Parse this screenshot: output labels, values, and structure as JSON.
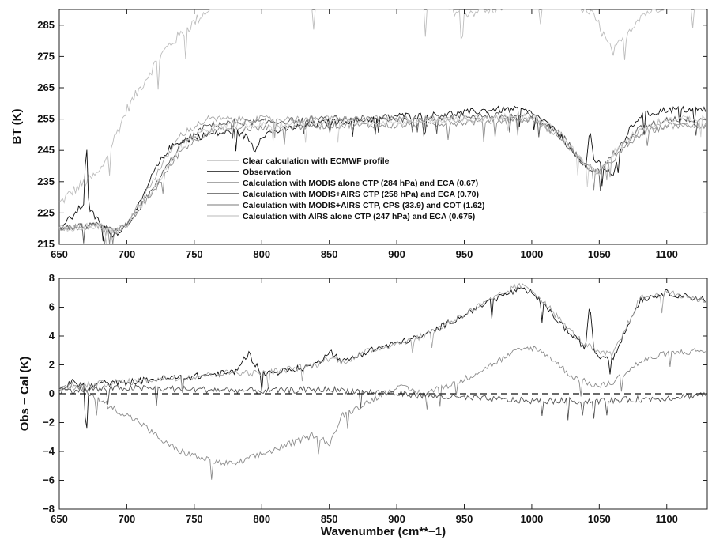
{
  "chart_data": [
    {
      "type": "line",
      "ylabel": "BT (K)",
      "xlim": [
        650,
        1130
      ],
      "ylim": [
        215,
        290
      ],
      "x_ticks": [
        "650",
        "700",
        "750",
        "800",
        "850",
        "900",
        "950",
        "1000",
        "1050",
        "1100"
      ],
      "y_ticks": [
        "215",
        "225",
        "235",
        "245",
        "255",
        "265",
        "275",
        "285"
      ],
      "legend_position": "center-left",
      "series": [
        {
          "name": "Clear calculation with ECMWF profile",
          "color": "#bdbdbd",
          "x": [
            650,
            660,
            670,
            680,
            690,
            700,
            710,
            720,
            730,
            740,
            750,
            760,
            770,
            780,
            790,
            800,
            820,
            850,
            880,
            900,
            930,
            950,
            970,
            990,
            1000,
            1010,
            1020,
            1030,
            1040,
            1045,
            1050,
            1055,
            1060,
            1070,
            1080,
            1100,
            1130
          ],
          "y": [
            228,
            232,
            235,
            238,
            248,
            258,
            265,
            272,
            278,
            282,
            286,
            290,
            292,
            292,
            292,
            292,
            293,
            293,
            293,
            292,
            291,
            289,
            290,
            292,
            292,
            293,
            293,
            292,
            290,
            288,
            285,
            280,
            276,
            282,
            288,
            292,
            292
          ]
        },
        {
          "name": "Observation",
          "color": "#111111",
          "x": [
            650,
            660,
            668,
            670,
            672,
            680,
            690,
            700,
            710,
            720,
            730,
            740,
            750,
            760,
            780,
            790,
            795,
            800,
            820,
            850,
            880,
            900,
            920,
            950,
            970,
            990,
            1000,
            1010,
            1020,
            1030,
            1040,
            1043,
            1046,
            1050,
            1055,
            1060,
            1070,
            1080,
            1100,
            1130
          ],
          "y": [
            220,
            224,
            228,
            249,
            226,
            222,
            218,
            221,
            228,
            238,
            245,
            248,
            249,
            250,
            251,
            249,
            245,
            250,
            252,
            254,
            255,
            256,
            256,
            257,
            258,
            258,
            257,
            254,
            250,
            245,
            239,
            252,
            242,
            241,
            239,
            237,
            250,
            256,
            258,
            258
          ]
        },
        {
          "name": "Calculation with MODIS alone CTP (284 hPa) and ECA (0.67)",
          "color": "#8c8c8c",
          "x": [
            650,
            680,
            690,
            700,
            720,
            740,
            760,
            780,
            800,
            850,
            900,
            950,
            1000,
            1020,
            1040,
            1050,
            1060,
            1080,
            1100,
            1130
          ],
          "y": [
            220,
            221,
            219,
            221,
            232,
            245,
            251,
            252,
            252,
            253,
            253,
            254,
            255,
            250,
            240,
            238,
            242,
            250,
            253,
            253
          ]
        },
        {
          "name": "Calculation with MODIS+AIRS CTP (258 hPa) and ECA (0.70)",
          "color": "#555555",
          "x": [
            650,
            680,
            690,
            700,
            720,
            740,
            760,
            780,
            800,
            850,
            900,
            950,
            1000,
            1020,
            1040,
            1050,
            1060,
            1080,
            1100,
            1130
          ],
          "y": [
            220,
            221,
            219,
            221,
            233,
            247,
            253,
            254,
            254,
            255,
            255,
            256,
            256,
            251,
            240,
            238,
            244,
            252,
            255,
            255
          ]
        },
        {
          "name": "Calculation with MODIS+AIRS CTP, CPS (33.9) and COT (1.62)",
          "color": "#a6a6a6",
          "x": [
            650,
            680,
            690,
            700,
            720,
            740,
            760,
            780,
            800,
            850,
            900,
            950,
            1000,
            1020,
            1040,
            1050,
            1060,
            1080,
            1100,
            1130
          ],
          "y": [
            220,
            221,
            219,
            221,
            236,
            250,
            255,
            255,
            255,
            255,
            255,
            255,
            255,
            250,
            240,
            238,
            244,
            251,
            253,
            253
          ]
        },
        {
          "name": "Calculation with AIRS alone CTP (247 hPa) and ECA (0.675)",
          "color": "#d0d0d0",
          "x": [
            650,
            680,
            690,
            700,
            720,
            740,
            760,
            780,
            800,
            850,
            900,
            950,
            1000,
            1020,
            1040,
            1050,
            1060,
            1080,
            1100,
            1130
          ],
          "y": [
            220,
            221,
            219,
            221,
            233,
            246,
            252,
            253,
            253,
            254,
            254,
            255,
            256,
            251,
            240,
            238,
            244,
            252,
            255,
            255
          ]
        }
      ]
    },
    {
      "type": "line",
      "xlabel": "Wavenumber (cm**−1)",
      "ylabel": "Obs − Cal (K)",
      "xlim": [
        650,
        1130
      ],
      "ylim": [
        -8,
        8
      ],
      "x_ticks": [
        "650",
        "700",
        "750",
        "800",
        "850",
        "900",
        "950",
        "1000",
        "1050",
        "1100"
      ],
      "y_ticks": [
        "−8",
        "−6",
        "−4",
        "−2",
        "0",
        "2",
        "4",
        "6",
        "8"
      ],
      "series": [
        {
          "color": "#111111",
          "x": [
            650,
            660,
            668,
            670,
            672,
            680,
            700,
            720,
            750,
            780,
            790,
            800,
            820,
            840,
            850,
            860,
            880,
            900,
            920,
            950,
            970,
            990,
            1000,
            1010,
            1020,
            1030,
            1040,
            1043,
            1046,
            1050,
            1060,
            1070,
            1080,
            1100,
            1130
          ],
          "y": [
            0.3,
            0.8,
            0.6,
            -3.0,
            0.5,
            0.7,
            0.8,
            1.0,
            1.2,
            1.5,
            2.8,
            1.4,
            1.6,
            2.0,
            3.0,
            2.2,
            3.0,
            3.5,
            4.0,
            5.5,
            6.5,
            7.2,
            7.0,
            6.0,
            5.0,
            4.0,
            3.2,
            6.5,
            3.0,
            2.6,
            2.5,
            4.5,
            6.5,
            7.0,
            6.5
          ]
        },
        {
          "color": "#8c8c8c",
          "x": [
            650,
            660,
            670,
            680,
            690,
            700,
            710,
            720,
            730,
            740,
            750,
            760,
            770,
            780,
            790,
            800,
            820,
            840,
            850,
            860,
            880,
            900,
            920,
            950,
            970,
            990,
            1000,
            1010,
            1020,
            1030,
            1040,
            1050,
            1060,
            1070,
            1080,
            1100,
            1130
          ],
          "y": [
            0.3,
            0.6,
            0.2,
            -0.5,
            -1.0,
            -1.5,
            -2.0,
            -2.8,
            -3.5,
            -4.0,
            -4.3,
            -4.6,
            -4.8,
            -4.9,
            -4.5,
            -4.2,
            -3.5,
            -2.8,
            -3.5,
            -1.5,
            -0.5,
            0.5,
            0.0,
            1.0,
            2.0,
            3.0,
            3.2,
            2.8,
            2.0,
            1.2,
            0.8,
            0.5,
            0.8,
            1.5,
            2.2,
            2.8,
            3.0
          ]
        },
        {
          "color": "#a6a6a6",
          "x": [
            650,
            680,
            700,
            720,
            750,
            780,
            800,
            840,
            850,
            860,
            880,
            900,
            920,
            950,
            970,
            990,
            1000,
            1010,
            1020,
            1030,
            1040,
            1050,
            1060,
            1070,
            1080,
            1100,
            1130
          ],
          "y": [
            0.3,
            0.7,
            0.8,
            1.0,
            1.2,
            1.5,
            1.4,
            2.0,
            2.5,
            2.2,
            3.0,
            3.5,
            4.0,
            5.5,
            6.5,
            7.5,
            7.2,
            6.3,
            5.2,
            4.2,
            3.4,
            2.8,
            2.7,
            4.6,
            6.6,
            7.0,
            6.4
          ]
        },
        {
          "color": "#555555",
          "x": [
            650,
            700,
            750,
            800,
            850,
            900,
            950,
            1000,
            1050,
            1100,
            1130
          ],
          "y": [
            0.2,
            0.4,
            0.3,
            0.2,
            0.3,
            0.0,
            -0.3,
            -0.5,
            -0.5,
            -0.3,
            0.0
          ]
        },
        {
          "color": "#111111",
          "dashed": true,
          "x": [
            650,
            1130
          ],
          "y": [
            0,
            0
          ]
        }
      ]
    }
  ]
}
